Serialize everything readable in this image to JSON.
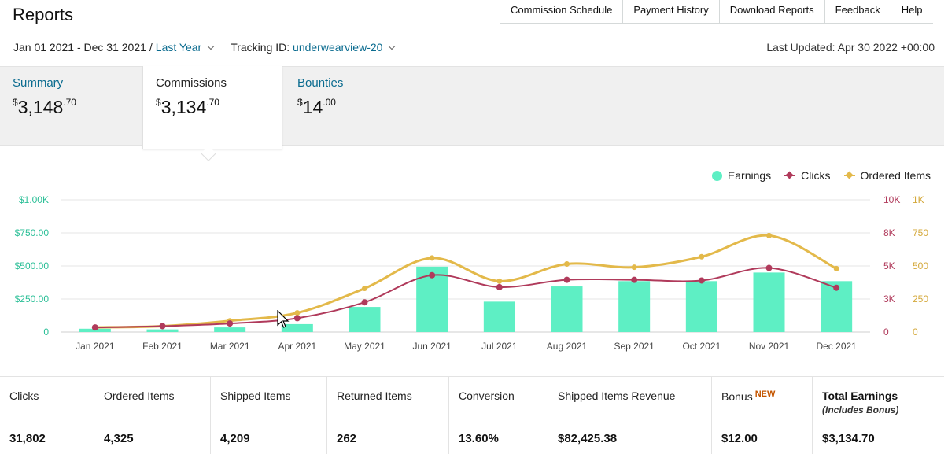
{
  "page": {
    "title": "Reports"
  },
  "top_nav": [
    "Commission Schedule",
    "Payment History",
    "Download Reports",
    "Feedback",
    "Help"
  ],
  "filters": {
    "date_range": "Jan 01 2021 - Dec 31 2021",
    "separator": "/",
    "period": "Last Year",
    "tracking_label": "Tracking ID:",
    "tracking_id": "underwearview-20",
    "last_updated": "Last Updated: Apr 30 2022 +00:00"
  },
  "summary_tabs": [
    {
      "label": "Summary",
      "currency": "$",
      "whole": "3,148",
      "cents": ".70"
    },
    {
      "label": "Commissions",
      "currency": "$",
      "whole": "3,134",
      "cents": ".70"
    },
    {
      "label": "Bounties",
      "currency": "$",
      "whole": "14",
      "cents": ".00"
    }
  ],
  "colors": {
    "earnings": "#5eefc4",
    "clicks": "#b03a5b",
    "ordered": "#e3b94a",
    "link": "#0a6b8f"
  },
  "chart_data": {
    "type": "bar",
    "categories": [
      "Jan 2021",
      "Feb 2021",
      "Mar 2021",
      "Apr 2021",
      "May 2021",
      "Jun 2021",
      "Jul 2021",
      "Aug 2021",
      "Sep 2021",
      "Oct 2021",
      "Nov 2021",
      "Dec 2021"
    ],
    "legend": [
      "Earnings",
      "Clicks",
      "Ordered Items"
    ],
    "legend_position": "top-right",
    "grid": true,
    "y_left": {
      "ticks": [
        "0",
        "$250.00",
        "$500.00",
        "$750.00",
        "$1.00K"
      ],
      "range": [
        0,
        1000
      ]
    },
    "y_right_clicks": {
      "ticks": [
        "0",
        "3K",
        "5K",
        "8K",
        "10K"
      ],
      "range": [
        0,
        10000
      ]
    },
    "y_right_items": {
      "ticks": [
        "0",
        "250",
        "500",
        "750",
        "1K"
      ],
      "range": [
        0,
        1000
      ]
    },
    "series": [
      {
        "name": "Earnings",
        "type": "bar",
        "axis": "left",
        "values": [
          25,
          20,
          35,
          60,
          190,
          495,
          230,
          345,
          385,
          385,
          450,
          385
        ]
      },
      {
        "name": "Clicks",
        "type": "line",
        "axis": "clicks",
        "values": [
          350,
          450,
          650,
          1050,
          2250,
          4300,
          3400,
          3950,
          3950,
          3900,
          4850,
          3350
        ]
      },
      {
        "name": "Ordered Items",
        "type": "line",
        "axis": "items",
        "values": [
          35,
          45,
          85,
          145,
          330,
          560,
          385,
          515,
          490,
          570,
          730,
          480
        ]
      }
    ]
  },
  "metrics": [
    {
      "label": "Clicks",
      "value": "31,802"
    },
    {
      "label": "Ordered Items",
      "value": "4,325"
    },
    {
      "label": "Shipped Items",
      "value": "4,209"
    },
    {
      "label": "Returned Items",
      "value": "262"
    },
    {
      "label": "Conversion",
      "value": "13.60%"
    },
    {
      "label": "Shipped Items Revenue",
      "value": "$82,425.38"
    },
    {
      "label": "Bonus",
      "badge": "NEW",
      "value": "$12.00"
    },
    {
      "label": "Total Earnings",
      "sub": "(Includes Bonus)",
      "value": "$3,134.70"
    }
  ]
}
